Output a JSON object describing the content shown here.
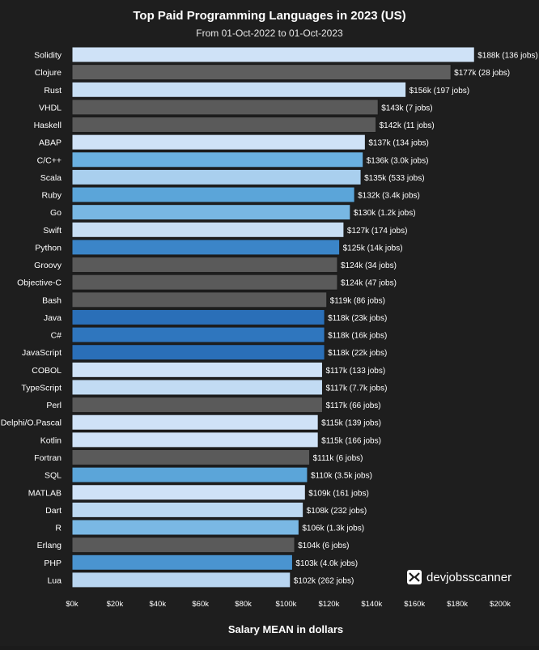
{
  "chart_data": {
    "type": "bar",
    "orientation": "horizontal",
    "title": "Top Paid Programming Languages in 2023 (US)",
    "subtitle": "From 01-Oct-2022 to 01-Oct-2023",
    "xlabel": "Salary MEAN in dollars",
    "ylabel": "",
    "xlim": [
      0,
      200
    ],
    "x_ticks": [
      "$0k",
      "$20k",
      "$40k",
      "$60k",
      "$80k",
      "$100k",
      "$120k",
      "$140k",
      "$160k",
      "$180k",
      "$200k"
    ],
    "categories": [
      "Solidity",
      "Clojure",
      "Rust",
      "VHDL",
      "Haskell",
      "ABAP",
      "C/C++",
      "Scala",
      "Ruby",
      "Go",
      "Swift",
      "Python",
      "Groovy",
      "Objective-C",
      "Bash",
      "Java",
      "C#",
      "JavaScript",
      "COBOL",
      "TypeScript",
      "Perl",
      "Delphi/O.Pascal",
      "Kotlin",
      "Fortran",
      "SQL",
      "MATLAB",
      "Dart",
      "R",
      "Erlang",
      "PHP",
      "Lua"
    ],
    "values": [
      188,
      177,
      156,
      143,
      142,
      137,
      136,
      135,
      132,
      130,
      127,
      125,
      124,
      124,
      119,
      118,
      118,
      118,
      117,
      117,
      117,
      115,
      115,
      111,
      110,
      109,
      108,
      106,
      104,
      103,
      102
    ],
    "value_labels": [
      "$188k (136 jobs)",
      "$177k (28 jobs)",
      "$156k (197 jobs)",
      "$143k (7 jobs)",
      "$142k (11 jobs)",
      "$137k (134 jobs)",
      "$136k (3.0k jobs)",
      "$135k (533 jobs)",
      "$132k (3.4k jobs)",
      "$130k (1.2k jobs)",
      "$127k (174 jobs)",
      "$125k (14k jobs)",
      "$124k (34 jobs)",
      "$124k (47 jobs)",
      "$119k (86 jobs)",
      "$118k (23k jobs)",
      "$118k (16k jobs)",
      "$118k (22k jobs)",
      "$117k (133 jobs)",
      "$117k (7.7k jobs)",
      "$117k (66 jobs)",
      "$115k (139 jobs)",
      "$115k (166 jobs)",
      "$111k (6 jobs)",
      "$110k (3.5k jobs)",
      "$109k (161 jobs)",
      "$108k (232 jobs)",
      "$106k (1.3k jobs)",
      "$104k (6 jobs)",
      "$103k (4.0k jobs)",
      "$102k (262 jobs)"
    ],
    "bar_colors": [
      "#cfe2f7",
      "#5e5e5e",
      "#c7def4",
      "#5a5a5a",
      "#5a5a5a",
      "#cfe2f7",
      "#6ab0e0",
      "#a9cfee",
      "#5ba5d9",
      "#78b7e3",
      "#c7def4",
      "#3b85c8",
      "#5a5a5a",
      "#5a5a5a",
      "#5a5a5a",
      "#2a6fb8",
      "#2f76be",
      "#2a6fb8",
      "#cfe2f7",
      "#c2dbf3",
      "#5a5a5a",
      "#cfe2f7",
      "#cfe2f7",
      "#5a5a5a",
      "#5ba5d9",
      "#cfe2f7",
      "#bcd8f1",
      "#7ab8e4",
      "#5a5a5a",
      "#4a94d0",
      "#b8d5f0"
    ],
    "legend": "none"
  },
  "branding": {
    "name": "devjobsscanner",
    "icon": "devjobsscanner-logo-icon"
  },
  "colors": {
    "background": "#1e1e1e",
    "text": "#ffffff"
  }
}
